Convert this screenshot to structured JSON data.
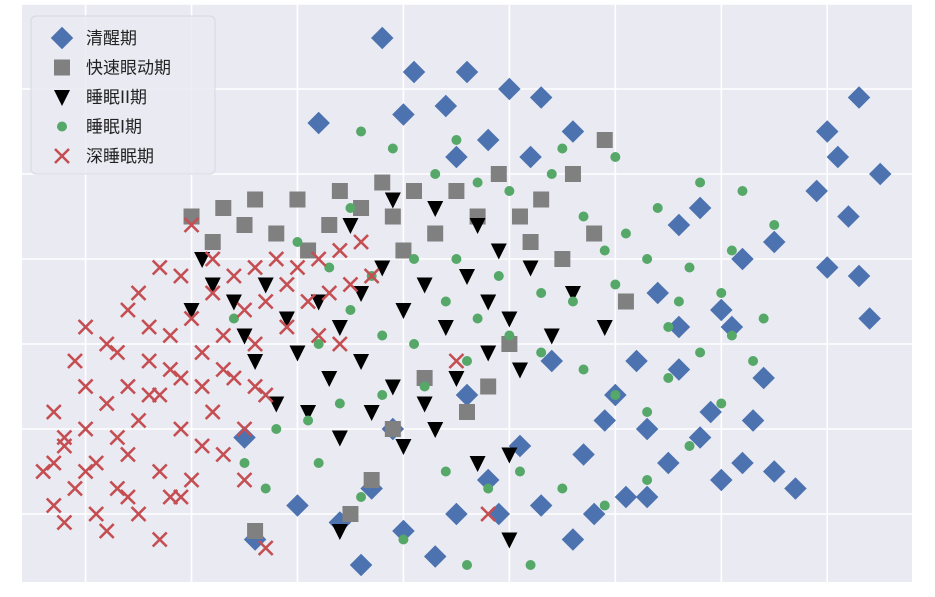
{
  "chart_data": {
    "type": "scatter",
    "title": "",
    "xlabel": "",
    "ylabel": "",
    "xlim": [
      -0.6,
      7.8
    ],
    "ylim": [
      -0.8,
      6.0
    ],
    "grid": true,
    "legend_position": "top-left",
    "series": [
      {
        "name": "清醒期",
        "marker": "diamond",
        "color": "#4c72b0",
        "points": [
          [
            2.8,
            5.6
          ],
          [
            2.2,
            4.6
          ],
          [
            3.0,
            4.7
          ],
          [
            3.4,
            4.8
          ],
          [
            3.6,
            5.2
          ],
          [
            3.8,
            4.4
          ],
          [
            4.0,
            5.0
          ],
          [
            4.3,
            4.9
          ],
          [
            4.6,
            4.5
          ],
          [
            3.5,
            4.2
          ],
          [
            4.2,
            4.2
          ],
          [
            3.1,
            5.2
          ],
          [
            5.6,
            3.4
          ],
          [
            5.8,
            3.6
          ],
          [
            6.2,
            3.0
          ],
          [
            6.0,
            2.4
          ],
          [
            5.4,
            2.6
          ],
          [
            5.6,
            2.2
          ],
          [
            5.2,
            1.8
          ],
          [
            5.0,
            1.4
          ],
          [
            5.3,
            1.0
          ],
          [
            5.5,
            0.6
          ],
          [
            5.8,
            0.9
          ],
          [
            6.0,
            0.4
          ],
          [
            6.2,
            0.6
          ],
          [
            5.1,
            0.2
          ],
          [
            4.8,
            0.0
          ],
          [
            4.6,
            -0.3
          ],
          [
            4.3,
            0.1
          ],
          [
            4.1,
            0.8
          ],
          [
            3.8,
            0.4
          ],
          [
            3.5,
            0.0
          ],
          [
            3.3,
            -0.5
          ],
          [
            3.0,
            -0.2
          ],
          [
            2.7,
            0.3
          ],
          [
            2.4,
            -0.1
          ],
          [
            2.0,
            0.1
          ],
          [
            1.6,
            -0.3
          ],
          [
            1.5,
            0.9
          ],
          [
            6.4,
            1.6
          ],
          [
            6.5,
            0.5
          ],
          [
            6.7,
            0.3
          ],
          [
            7.0,
            4.5
          ],
          [
            7.3,
            4.9
          ],
          [
            7.1,
            4.2
          ],
          [
            7.5,
            4.0
          ],
          [
            7.2,
            3.5
          ],
          [
            6.5,
            3.2
          ],
          [
            7.3,
            2.8
          ],
          [
            7.0,
            2.9
          ],
          [
            7.4,
            2.3
          ],
          [
            6.9,
            3.8
          ],
          [
            6.1,
            2.2
          ],
          [
            5.9,
            1.2
          ],
          [
            5.6,
            1.7
          ],
          [
            4.9,
            1.1
          ],
          [
            4.4,
            1.8
          ],
          [
            5.3,
            0.2
          ],
          [
            6.3,
            1.1
          ],
          [
            4.7,
            0.7
          ],
          [
            3.9,
            0.0
          ],
          [
            2.6,
            -0.6
          ],
          [
            3.6,
            1.4
          ],
          [
            2.9,
            1.0
          ]
        ]
      },
      {
        "name": "快速眼动期",
        "marker": "square",
        "color": "#808080",
        "points": [
          [
            1.0,
            3.5
          ],
          [
            1.3,
            3.6
          ],
          [
            1.6,
            3.7
          ],
          [
            2.0,
            3.7
          ],
          [
            2.4,
            3.8
          ],
          [
            2.8,
            3.9
          ],
          [
            3.1,
            3.8
          ],
          [
            3.5,
            3.8
          ],
          [
            3.9,
            4.0
          ],
          [
            4.3,
            3.7
          ],
          [
            4.6,
            4.0
          ],
          [
            4.9,
            4.4
          ],
          [
            4.8,
            3.3
          ],
          [
            4.2,
            3.2
          ],
          [
            3.7,
            3.5
          ],
          [
            3.3,
            3.3
          ],
          [
            2.9,
            3.5
          ],
          [
            2.6,
            3.6
          ],
          [
            2.3,
            3.4
          ],
          [
            1.8,
            3.3
          ],
          [
            1.5,
            3.4
          ],
          [
            1.2,
            3.2
          ],
          [
            4.5,
            3.0
          ],
          [
            5.1,
            2.5
          ],
          [
            4.0,
            2.0
          ],
          [
            3.8,
            1.5
          ],
          [
            3.6,
            1.2
          ],
          [
            3.2,
            1.6
          ],
          [
            2.9,
            1.0
          ],
          [
            2.7,
            0.4
          ],
          [
            2.5,
            0.0
          ],
          [
            1.6,
            -0.2
          ],
          [
            4.1,
            3.5
          ],
          [
            3.0,
            3.1
          ],
          [
            2.1,
            3.1
          ]
        ]
      },
      {
        "name": "睡眠II期",
        "marker": "triangle-down",
        "color": "#000000",
        "points": [
          [
            1.1,
            3.0
          ],
          [
            1.2,
            2.7
          ],
          [
            1.4,
            2.5
          ],
          [
            1.7,
            2.7
          ],
          [
            1.9,
            2.3
          ],
          [
            2.2,
            2.5
          ],
          [
            2.4,
            2.2
          ],
          [
            2.6,
            2.6
          ],
          [
            2.8,
            2.9
          ],
          [
            3.0,
            2.4
          ],
          [
            3.2,
            2.7
          ],
          [
            3.4,
            2.2
          ],
          [
            3.6,
            2.8
          ],
          [
            3.8,
            2.5
          ],
          [
            4.0,
            2.3
          ],
          [
            4.2,
            2.9
          ],
          [
            4.4,
            2.1
          ],
          [
            2.0,
            1.9
          ],
          [
            2.3,
            1.6
          ],
          [
            2.6,
            1.8
          ],
          [
            2.9,
            1.5
          ],
          [
            3.2,
            1.3
          ],
          [
            3.5,
            1.6
          ],
          [
            3.8,
            1.9
          ],
          [
            4.1,
            1.7
          ],
          [
            1.6,
            1.8
          ],
          [
            1.8,
            1.3
          ],
          [
            2.1,
            1.2
          ],
          [
            2.4,
            0.9
          ],
          [
            2.7,
            1.2
          ],
          [
            3.0,
            0.8
          ],
          [
            3.3,
            1.0
          ],
          [
            2.5,
            3.4
          ],
          [
            2.9,
            3.7
          ],
          [
            3.3,
            3.6
          ],
          [
            3.7,
            3.4
          ],
          [
            3.9,
            3.1
          ],
          [
            4.6,
            2.6
          ],
          [
            4.9,
            2.2
          ],
          [
            3.7,
            0.6
          ],
          [
            4.0,
            0.7
          ],
          [
            4.0,
            -0.3
          ],
          [
            2.4,
            -0.2
          ],
          [
            1.0,
            2.4
          ],
          [
            1.5,
            2.1
          ]
        ]
      },
      {
        "name": "睡眠I期",
        "marker": "circle",
        "color": "#55a868",
        "points": [
          [
            2.6,
            4.5
          ],
          [
            2.9,
            4.3
          ],
          [
            3.3,
            4.0
          ],
          [
            3.7,
            3.9
          ],
          [
            4.0,
            3.8
          ],
          [
            4.4,
            4.0
          ],
          [
            4.7,
            3.5
          ],
          [
            5.1,
            3.3
          ],
          [
            5.4,
            3.6
          ],
          [
            5.8,
            3.9
          ],
          [
            6.2,
            3.8
          ],
          [
            6.5,
            3.4
          ],
          [
            6.1,
            3.1
          ],
          [
            5.7,
            2.9
          ],
          [
            5.3,
            3.0
          ],
          [
            5.6,
            2.5
          ],
          [
            6.0,
            2.6
          ],
          [
            6.4,
            2.3
          ],
          [
            5.0,
            2.7
          ],
          [
            4.6,
            2.5
          ],
          [
            4.3,
            2.6
          ],
          [
            3.9,
            2.8
          ],
          [
            3.5,
            3.0
          ],
          [
            3.1,
            3.0
          ],
          [
            2.7,
            2.8
          ],
          [
            2.3,
            2.9
          ],
          [
            2.5,
            2.4
          ],
          [
            2.8,
            2.1
          ],
          [
            3.1,
            2.0
          ],
          [
            3.4,
            2.5
          ],
          [
            3.7,
            2.3
          ],
          [
            4.0,
            2.1
          ],
          [
            4.3,
            1.9
          ],
          [
            4.7,
            1.7
          ],
          [
            5.0,
            1.4
          ],
          [
            5.3,
            1.2
          ],
          [
            5.5,
            1.6
          ],
          [
            5.8,
            1.9
          ],
          [
            6.1,
            2.1
          ],
          [
            3.6,
            1.8
          ],
          [
            3.2,
            1.5
          ],
          [
            2.8,
            1.4
          ],
          [
            2.4,
            1.3
          ],
          [
            2.1,
            1.1
          ],
          [
            1.8,
            1.0
          ],
          [
            1.5,
            0.6
          ],
          [
            1.7,
            0.3
          ],
          [
            2.2,
            0.6
          ],
          [
            2.6,
            0.2
          ],
          [
            3.0,
            -0.3
          ],
          [
            3.4,
            0.5
          ],
          [
            3.8,
            0.3
          ],
          [
            4.1,
            0.5
          ],
          [
            4.5,
            0.3
          ],
          [
            4.9,
            0.1
          ],
          [
            5.3,
            0.4
          ],
          [
            5.7,
            0.8
          ],
          [
            6.0,
            1.3
          ],
          [
            6.3,
            1.8
          ],
          [
            2.5,
            3.6
          ],
          [
            2.0,
            3.2
          ],
          [
            1.4,
            2.3
          ],
          [
            4.2,
            -0.6
          ],
          [
            3.6,
            -0.6
          ],
          [
            5.0,
            4.2
          ],
          [
            4.5,
            4.3
          ],
          [
            3.5,
            4.4
          ],
          [
            2.2,
            2.0
          ],
          [
            4.9,
            3.1
          ],
          [
            5.5,
            2.2
          ]
        ]
      },
      {
        "name": "深睡眠期",
        "marker": "x",
        "color": "#c44e52",
        "points": [
          [
            -0.4,
            0.5
          ],
          [
            -0.3,
            0.1
          ],
          [
            -0.2,
            0.8
          ],
          [
            -0.1,
            0.3
          ],
          [
            0.0,
            1.0
          ],
          [
            0.1,
            0.6
          ],
          [
            0.2,
            1.3
          ],
          [
            0.3,
            0.9
          ],
          [
            0.4,
            1.5
          ],
          [
            0.5,
            1.1
          ],
          [
            0.6,
            1.8
          ],
          [
            0.7,
            1.4
          ],
          [
            0.8,
            2.1
          ],
          [
            0.9,
            1.6
          ],
          [
            1.0,
            2.3
          ],
          [
            1.1,
            1.9
          ],
          [
            1.2,
            2.6
          ],
          [
            1.3,
            2.1
          ],
          [
            1.4,
            2.8
          ],
          [
            1.5,
            2.4
          ],
          [
            1.6,
            2.9
          ],
          [
            1.7,
            2.5
          ],
          [
            1.8,
            3.0
          ],
          [
            1.9,
            2.7
          ],
          [
            2.0,
            2.9
          ],
          [
            2.1,
            2.5
          ],
          [
            2.2,
            3.0
          ],
          [
            2.3,
            2.6
          ],
          [
            2.4,
            3.1
          ],
          [
            2.5,
            2.7
          ],
          [
            2.6,
            3.2
          ],
          [
            2.7,
            2.8
          ],
          [
            -0.3,
            1.2
          ],
          [
            -0.2,
            0.9
          ],
          [
            0.0,
            1.5
          ],
          [
            0.1,
            0.0
          ],
          [
            0.2,
            -0.2
          ],
          [
            0.3,
            0.3
          ],
          [
            0.4,
            0.7
          ],
          [
            0.5,
            0.0
          ],
          [
            0.6,
            1.4
          ],
          [
            0.7,
            0.5
          ],
          [
            0.8,
            0.2
          ],
          [
            0.9,
            1.0
          ],
          [
            1.0,
            0.4
          ],
          [
            1.1,
            0.8
          ],
          [
            1.2,
            1.2
          ],
          [
            1.3,
            0.7
          ],
          [
            1.4,
            1.6
          ],
          [
            1.5,
            1.0
          ],
          [
            1.6,
            2.0
          ],
          [
            1.7,
            1.4
          ],
          [
            -0.2,
            -0.1
          ],
          [
            -0.1,
            1.8
          ],
          [
            0.0,
            2.2
          ],
          [
            0.2,
            2.0
          ],
          [
            0.4,
            2.4
          ],
          [
            0.5,
            2.6
          ],
          [
            0.7,
            2.9
          ],
          [
            0.9,
            2.8
          ],
          [
            1.2,
            3.0
          ],
          [
            1.0,
            3.4
          ],
          [
            1.9,
            2.2
          ],
          [
            2.2,
            2.1
          ],
          [
            2.4,
            2.0
          ],
          [
            0.3,
            1.9
          ],
          [
            0.6,
            2.2
          ],
          [
            0.8,
            1.7
          ],
          [
            1.1,
            1.5
          ],
          [
            1.3,
            1.7
          ],
          [
            1.6,
            1.5
          ],
          [
            3.5,
            1.8
          ],
          [
            1.5,
            0.4
          ],
          [
            0.7,
            -0.3
          ],
          [
            3.8,
            0.0
          ],
          [
            1.7,
            -0.4
          ],
          [
            0.0,
            0.5
          ],
          [
            -0.3,
            0.6
          ],
          [
            0.9,
            0.2
          ],
          [
            0.4,
            0.2
          ]
        ]
      }
    ]
  }
}
